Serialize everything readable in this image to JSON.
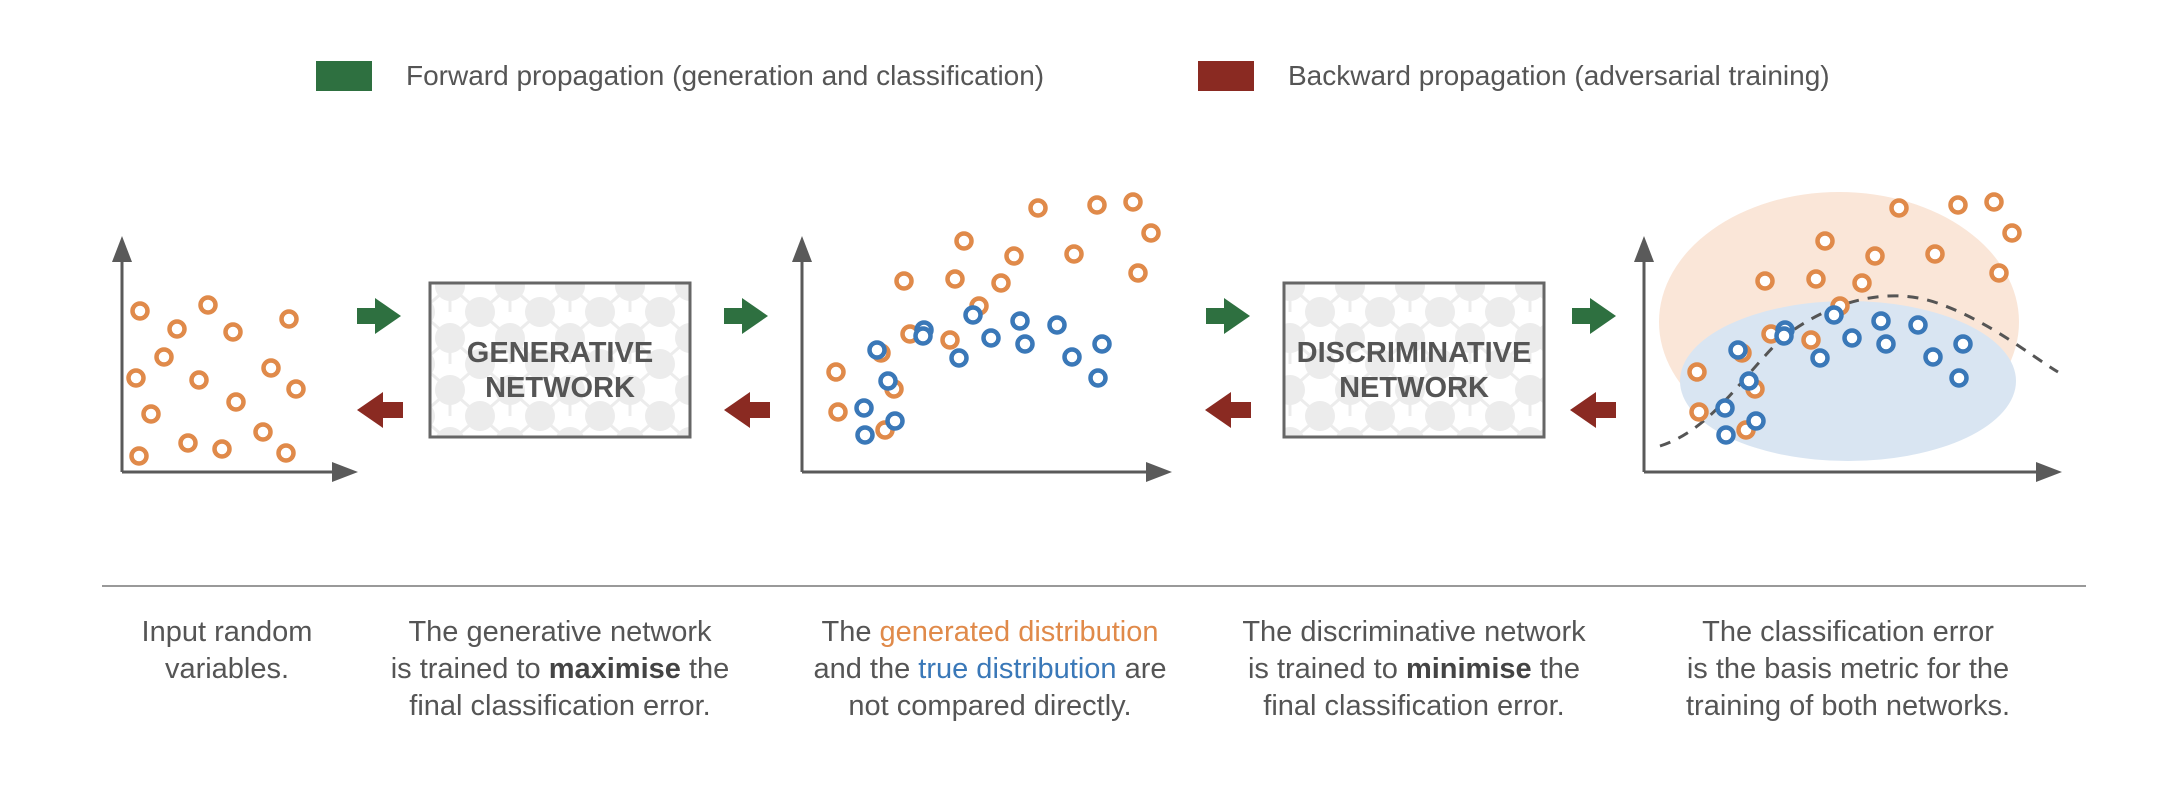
{
  "colors": {
    "forward": "#2e7040",
    "backward": "#8a2a22",
    "generated": "#e08a4a",
    "true": "#3a78b8",
    "axis": "#5a5a5a",
    "box_border": "#666666",
    "region_generated": "#fae6d8",
    "region_true": "#d9e5f2"
  },
  "legend": {
    "forward": {
      "label": "Forward propagation (generation and classification)",
      "color": "#2e7040"
    },
    "backward": {
      "label": "Backward propagation (adversarial training)",
      "color": "#8a2a22"
    }
  },
  "networks": {
    "generative": {
      "line1": "GENERATIVE",
      "line2": "NETWORK"
    },
    "discriminative": {
      "line1": "DISCRIMINATIVE",
      "line2": "NETWORK"
    }
  },
  "captions": {
    "c1": {
      "l1": "Input random",
      "l2": "variables."
    },
    "c2": {
      "l1": "The generative network",
      "l2a": "is trained to ",
      "l2b": "maximise",
      "l2c": " the",
      "l3": "final classification error."
    },
    "c3": {
      "l1a": "The ",
      "l1b": "generated distribution",
      "l2a": "and the ",
      "l2b": "true distribution",
      "l2c": " are",
      "l3": "not compared directly."
    },
    "c4": {
      "l1": "The discriminative network",
      "l2a": "is trained to ",
      "l2b": "minimise",
      "l2c": " the",
      "l3": "final classification error."
    },
    "c5": {
      "l1": "The classification error",
      "l2": "is the basis metric for the",
      "l3": "training of both networks."
    }
  },
  "plots": {
    "random_points": [
      [
        140,
        311
      ],
      [
        177,
        329
      ],
      [
        208,
        305
      ],
      [
        233,
        332
      ],
      [
        289,
        319
      ],
      [
        164,
        357
      ],
      [
        136,
        378
      ],
      [
        199,
        380
      ],
      [
        271,
        368
      ],
      [
        296,
        389
      ],
      [
        151,
        414
      ],
      [
        236,
        402
      ],
      [
        188,
        443
      ],
      [
        222,
        449
      ],
      [
        263,
        432
      ],
      [
        286,
        453
      ],
      [
        139,
        456
      ]
    ],
    "generated_points": [
      [
        1097,
        205
      ],
      [
        1133,
        202
      ],
      [
        1038,
        208
      ],
      [
        1151,
        233
      ],
      [
        1074,
        254
      ],
      [
        1138,
        273
      ],
      [
        964,
        241
      ],
      [
        1014,
        256
      ],
      [
        1001,
        283
      ],
      [
        955,
        279
      ],
      [
        904,
        281
      ],
      [
        979,
        306
      ],
      [
        910,
        334
      ],
      [
        950,
        340
      ],
      [
        836,
        372
      ],
      [
        881,
        353
      ],
      [
        894,
        389
      ],
      [
        838,
        412
      ],
      [
        885,
        430
      ]
    ],
    "true_points": [
      [
        973,
        315
      ],
      [
        1020,
        321
      ],
      [
        924,
        330
      ],
      [
        877,
        350
      ],
      [
        1057,
        325
      ],
      [
        991,
        338
      ],
      [
        1025,
        344
      ],
      [
        1102,
        344
      ],
      [
        1072,
        357
      ],
      [
        923,
        336
      ],
      [
        959,
        358
      ],
      [
        888,
        381
      ],
      [
        1098,
        378
      ],
      [
        864,
        408
      ],
      [
        895,
        421
      ],
      [
        865,
        435
      ]
    ]
  }
}
